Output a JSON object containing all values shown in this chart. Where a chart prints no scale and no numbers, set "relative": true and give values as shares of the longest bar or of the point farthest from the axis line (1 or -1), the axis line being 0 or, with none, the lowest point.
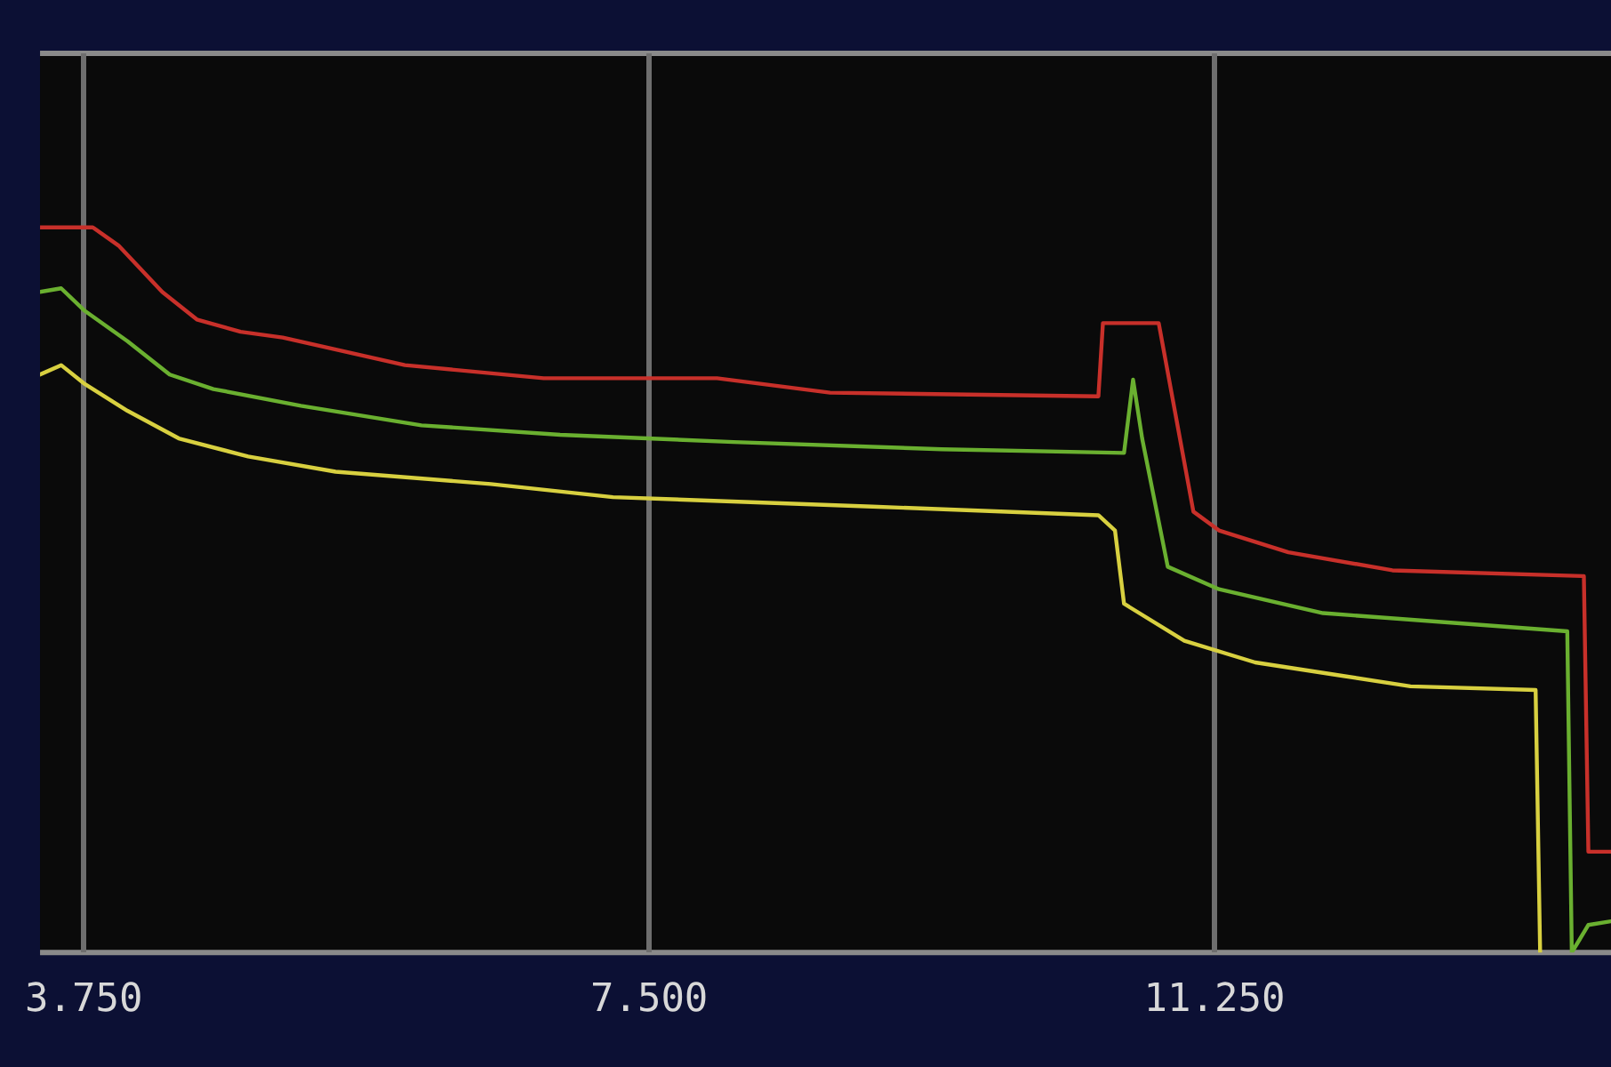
{
  "chart_data": {
    "type": "line",
    "relative": true,
    "grid": "x",
    "legend": false,
    "marker": "none",
    "line_style": "solid",
    "xlim": [
      3.46,
      13.88
    ],
    "xticks": [
      {
        "value": 3.75,
        "label": "3.750"
      },
      {
        "value": 7.5,
        "label": "7.500"
      },
      {
        "value": 11.25,
        "label": "11.250"
      }
    ],
    "series": [
      {
        "color": "#c8302a",
        "x": [
          3.46,
          3.81,
          3.98,
          4.27,
          4.5,
          4.79,
          5.07,
          5.88,
          6.8,
          7.95,
          8.7,
          10.48,
          10.51,
          10.88,
          11.11,
          11.28,
          11.74,
          12.43,
          13.7,
          13.73,
          13.88
        ],
        "values": [
          1.0,
          1.0,
          0.975,
          0.911,
          0.873,
          0.856,
          0.848,
          0.81,
          0.792,
          0.792,
          0.772,
          0.767,
          0.868,
          0.868,
          0.608,
          0.582,
          0.552,
          0.527,
          0.519,
          0.139,
          0.139
        ]
      },
      {
        "color": "#6ab030",
        "x": [
          3.46,
          3.6,
          3.75,
          4.04,
          4.32,
          4.61,
          5.19,
          5.99,
          6.91,
          8.06,
          9.44,
          10.65,
          10.71,
          10.77,
          10.94,
          11.28,
          11.97,
          13.59,
          13.62,
          13.73,
          13.88
        ],
        "values": [
          0.911,
          0.916,
          0.886,
          0.843,
          0.797,
          0.777,
          0.754,
          0.727,
          0.714,
          0.704,
          0.694,
          0.689,
          0.79,
          0.709,
          0.532,
          0.501,
          0.468,
          0.443,
          0,
          0.038,
          0.043
        ]
      },
      {
        "color": "#d8d040",
        "x": [
          3.46,
          3.6,
          3.75,
          4.04,
          4.38,
          4.84,
          5.42,
          6.45,
          7.26,
          8.98,
          10.48,
          10.59,
          10.65,
          11.05,
          11.52,
          12.55,
          13.38,
          13.41
        ],
        "values": [
          0.797,
          0.81,
          0.785,
          0.747,
          0.709,
          0.684,
          0.663,
          0.646,
          0.628,
          0.615,
          0.603,
          0.582,
          0.481,
          0.43,
          0.4,
          0.367,
          0.362,
          0
        ]
      }
    ]
  }
}
